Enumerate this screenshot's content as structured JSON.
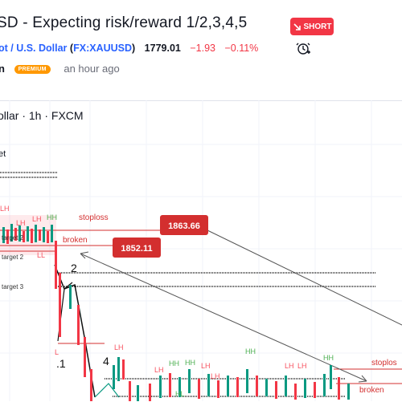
{
  "idea": {
    "title": "SD - Expecting risk/reward 1/2,3,4,5",
    "direction": "SHORT"
  },
  "symbol": {
    "name": "ot / U.S. Dollar",
    "code_open": "(",
    "code": "FX:XAUUSD",
    "code_close": ")",
    "price": "1779.01",
    "change": "−1.93",
    "change_pct": "−0.11%"
  },
  "author": {
    "name_fragment": "n",
    "badge": "PREMIUM",
    "time": "an hour ago"
  },
  "chart": {
    "header": "ollar · 1h · FXCM",
    "pane_label": "et",
    "annotations": {
      "stoploss_left": "stoploss",
      "broken_left": "broken",
      "price_tag_high": "1863.66",
      "price_tag_low": "1852.11",
      "target_2": "target 2",
      "target_2b": "target 2",
      "target_3": "target 3",
      "wave_2": "2",
      "wave_1": ".1",
      "wave_4": "4",
      "stoploss_right": "stoplos",
      "broken_right": "broken"
    },
    "pivot_labels": {
      "lh": "LH",
      "hh": "HH",
      "hl": "HL",
      "ll": "LL",
      "l": "L"
    }
  },
  "colors": {
    "down": "#f23645",
    "up": "#089981",
    "link": "#2962ff",
    "premium": "#ff9800",
    "pivot_high": "#f7525f",
    "pivot_green": "#4caf50"
  }
}
